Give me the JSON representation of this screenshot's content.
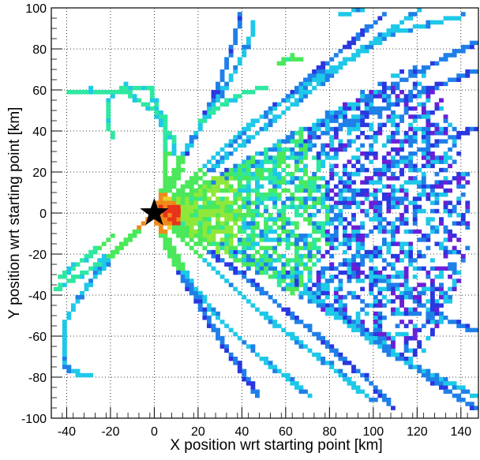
{
  "chart_data": {
    "type": "heatmap",
    "title": "",
    "xlabel": "X position wrt starting point [km]",
    "ylabel": "Y position wrt starting point [km]",
    "xlim": [
      -47,
      148
    ],
    "ylim": [
      -100,
      100
    ],
    "xticks": [
      -40,
      -20,
      0,
      20,
      40,
      60,
      80,
      100,
      120,
      140
    ],
    "yticks": [
      100,
      80,
      60,
      40,
      20,
      0,
      -20,
      -40,
      -60,
      -80,
      -100
    ],
    "grid": true,
    "colormap": [
      "#6a1fd6",
      "#2a36e0",
      "#1f7fe8",
      "#1ec8e8",
      "#2ee8a0",
      "#4ae85a",
      "#8ee83a",
      "#e8d12a",
      "#f08a1a",
      "#e8321a"
    ],
    "marker": {
      "shape": "star",
      "x": 0,
      "y": 0,
      "color": "#000000"
    },
    "tracks": [
      {
        "points": [
          [
            0,
            0
          ],
          [
            10,
            22
          ],
          [
            22,
            44
          ],
          [
            34,
            64
          ],
          [
            40,
            76
          ],
          [
            44,
            86
          ],
          [
            46,
            94
          ]
        ],
        "level": 2
      },
      {
        "points": [
          [
            0,
            0
          ],
          [
            4,
            12
          ],
          [
            6,
            28
          ],
          [
            4,
            46
          ],
          [
            -2,
            60
          ],
          [
            -14,
            62
          ],
          [
            -20,
            56
          ],
          [
            -22,
            44
          ],
          [
            -18,
            36
          ]
        ],
        "level": 3
      },
      {
        "points": [
          [
            0,
            0
          ],
          [
            -6,
            -6
          ],
          [
            -16,
            -18
          ],
          [
            -28,
            -32
          ],
          [
            -36,
            -44
          ],
          [
            -40,
            -52
          ],
          [
            -42,
            -60
          ],
          [
            -42,
            -68
          ],
          [
            -40,
            -76
          ],
          [
            -30,
            -80
          ]
        ],
        "level": 2
      },
      {
        "points": [
          [
            0,
            0
          ],
          [
            -10,
            -10
          ],
          [
            -20,
            -20
          ],
          [
            -30,
            -28
          ],
          [
            -40,
            -34
          ],
          [
            -46,
            -38
          ]
        ],
        "level": 3
      },
      {
        "points": [
          [
            0,
            0
          ],
          [
            8,
            -22
          ],
          [
            18,
            -40
          ],
          [
            28,
            -58
          ],
          [
            38,
            -74
          ],
          [
            44,
            -84
          ],
          [
            48,
            -90
          ]
        ],
        "level": 1
      },
      {
        "points": [
          [
            0,
            0
          ],
          [
            14,
            -30
          ],
          [
            28,
            -50
          ],
          [
            44,
            -66
          ],
          [
            60,
            -80
          ],
          [
            72,
            -90
          ]
        ],
        "level": 2
      },
      {
        "points": [
          [
            0,
            0
          ],
          [
            12,
            20
          ],
          [
            8,
            36
          ],
          [
            0,
            50
          ],
          [
            -12,
            58
          ],
          [
            -30,
            60
          ],
          [
            -40,
            58
          ]
        ],
        "level": 3
      },
      {
        "points": [
          [
            0,
            0
          ],
          [
            20,
            40
          ],
          [
            30,
            64
          ],
          [
            36,
            82
          ],
          [
            40,
            98
          ]
        ],
        "level": 1
      },
      {
        "points": [
          [
            0,
            0
          ],
          [
            30,
            30
          ],
          [
            60,
            56
          ],
          [
            84,
            78
          ],
          [
            104,
            96
          ]
        ],
        "level": 1
      },
      {
        "points": [
          [
            0,
            0
          ],
          [
            40,
            40
          ],
          [
            80,
            70
          ],
          [
            110,
            88
          ],
          [
            140,
            96
          ]
        ],
        "level": 2
      },
      {
        "points": [
          [
            0,
            0
          ],
          [
            40,
            20
          ],
          [
            80,
            40
          ],
          [
            120,
            58
          ],
          [
            148,
            70
          ]
        ],
        "level": 1
      },
      {
        "points": [
          [
            0,
            0
          ],
          [
            60,
            50
          ],
          [
            100,
            84
          ],
          [
            120,
            98
          ]
        ],
        "level": 2
      },
      {
        "points": [
          [
            0,
            0
          ],
          [
            50,
            30
          ],
          [
            90,
            52
          ],
          [
            130,
            74
          ],
          [
            148,
            84
          ]
        ],
        "level": 1
      },
      {
        "points": [
          [
            0,
            0
          ],
          [
            60,
            -30
          ],
          [
            100,
            -60
          ],
          [
            130,
            -84
          ],
          [
            148,
            -96
          ]
        ],
        "level": 1
      },
      {
        "points": [
          [
            0,
            0
          ],
          [
            40,
            -30
          ],
          [
            70,
            -56
          ],
          [
            96,
            -80
          ],
          [
            110,
            -96
          ]
        ],
        "level": 1
      },
      {
        "points": [
          [
            0,
            0
          ],
          [
            50,
            -50
          ],
          [
            80,
            -74
          ],
          [
            100,
            -92
          ]
        ],
        "level": 2
      },
      {
        "points": [
          [
            0,
            0
          ],
          [
            70,
            -40
          ],
          [
            110,
            -70
          ],
          [
            148,
            -90
          ]
        ],
        "level": 2
      },
      {
        "points": [
          [
            -20,
            -12
          ],
          [
            -34,
            -24
          ],
          [
            -44,
            -32
          ]
        ],
        "level": 3
      },
      {
        "points": [
          [
            20,
            44
          ],
          [
            30,
            52
          ],
          [
            40,
            58
          ],
          [
            52,
            62
          ]
        ],
        "level": 3
      },
      {
        "points": [
          [
            56,
            72
          ],
          [
            62,
            76
          ],
          [
            68,
            74
          ]
        ],
        "level": 4
      },
      {
        "points": [
          [
            84,
            96
          ],
          [
            96,
            100
          ]
        ],
        "level": 2
      },
      {
        "points": [
          [
            100,
            20
          ],
          [
            120,
            30
          ],
          [
            148,
            42
          ]
        ],
        "level": 1
      },
      {
        "points": [
          [
            100,
            -30
          ],
          [
            130,
            -50
          ],
          [
            148,
            -58
          ]
        ],
        "level": 1
      }
    ]
  }
}
